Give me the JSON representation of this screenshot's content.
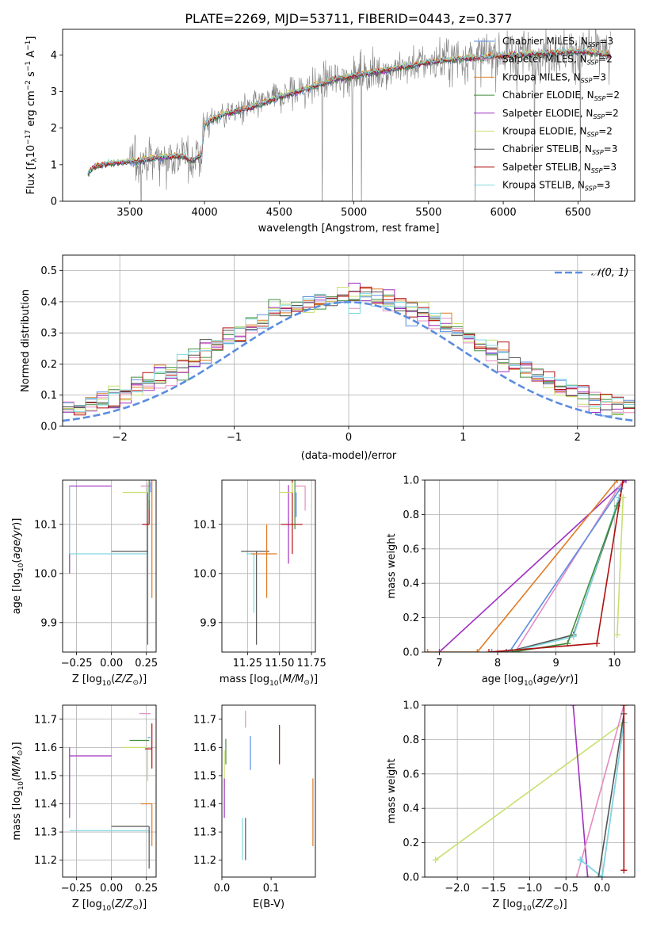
{
  "figure": {
    "title": "PLATE=2269, MJD=53711, FIBERID=0443, z=0.377"
  },
  "colors": {
    "Chabrier MILES": "#5b8de0",
    "Salpeter MILES": "#e58bc0",
    "Kroupa MILES": "#e07b23",
    "Chabrier ELODIE": "#3f8f3f",
    "Salpeter ELODIE": "#a030c0",
    "Kroupa ELODIE": "#c8e070",
    "Chabrier STELIB": "#555555",
    "Salpeter STELIB": "#b01010",
    "Kroupa STELIB": "#7fd8e0",
    "data": "#808080",
    "normal": "#5b8de0"
  },
  "chart_data": [
    {
      "id": "spectrum",
      "type": "line",
      "title": "PLATE=2269, MJD=53711, FIBERID=0443, z=0.377",
      "xlabel": "wavelength [Angstrom, rest frame]",
      "ylabel": "Flux [f_λ 10^-17 erg cm^-2 s^-1 A^-1]",
      "xlim": [
        3050,
        6880
      ],
      "ylim": [
        0,
        4.7
      ],
      "xticks": [
        3500,
        4000,
        4500,
        5000,
        5500,
        6000,
        6500
      ],
      "yticks": [
        0,
        1,
        2,
        3,
        4
      ],
      "grid": false,
      "legend_position": "top-right",
      "legend": [
        "Chabrier MILES, N_SSP=3",
        "Salpeter MILES, N_SSP=2",
        "Kroupa MILES, N_SSP=3",
        "Chabrier ELODIE, N_SSP=2",
        "Salpeter ELODIE, N_SSP=2",
        "Kroupa ELODIE, N_SSP=2",
        "Chabrier STELIB, N_SSP=3",
        "Salpeter STELIB, N_SSP=3",
        "Kroupa STELIB, N_SSP=3"
      ],
      "x_start": 3220,
      "x_end": 6720,
      "continuum": [
        [
          3220,
          0.75
        ],
        [
          3260,
          0.95
        ],
        [
          3400,
          1.05
        ],
        [
          3550,
          1.1
        ],
        [
          3700,
          1.2
        ],
        [
          3850,
          1.25
        ],
        [
          3920,
          1.1
        ],
        [
          3980,
          1.3
        ],
        [
          4000,
          2.1
        ],
        [
          4100,
          2.35
        ],
        [
          4300,
          2.55
        ],
        [
          4500,
          2.85
        ],
        [
          4700,
          3.1
        ],
        [
          4900,
          3.35
        ],
        [
          5100,
          3.5
        ],
        [
          5300,
          3.65
        ],
        [
          5500,
          3.8
        ],
        [
          5700,
          3.9
        ],
        [
          5900,
          3.95
        ],
        [
          6100,
          4.0
        ],
        [
          6300,
          4.05
        ],
        [
          6500,
          4.1
        ],
        [
          6720,
          4.0
        ]
      ]
    },
    {
      "id": "residuals",
      "type": "histogram",
      "xlabel": "(data-model)/error",
      "ylabel": "Normed distribution",
      "xlim": [
        -2.5,
        2.5
      ],
      "ylim": [
        0,
        0.55
      ],
      "xticks": [
        -2,
        -1,
        0,
        1,
        2
      ],
      "yticks": [
        0.0,
        0.1,
        0.2,
        0.3,
        0.4,
        0.5
      ],
      "grid": true,
      "legend_position": "top-right",
      "legend": [
        "𝒩(0, 1)"
      ],
      "bin_width": 0.1,
      "peaks": [
        0.52,
        0.45,
        0.42,
        0.49,
        0.47,
        0.44,
        0.43,
        0.46,
        0.44
      ]
    },
    {
      "id": "age_vs_Z",
      "type": "scatter",
      "xlabel": "Z [log10(Z/Z☉)]",
      "ylabel": "age  [log10(age/yr)]",
      "xlim": [
        -0.35,
        0.32
      ],
      "ylim": [
        9.84,
        10.19
      ],
      "xticks": [
        -0.25,
        0.0,
        0.25
      ],
      "ytick_labels": [
        "-0.25",
        "0.00",
        "0.25"
      ],
      "yticks": [
        9.9,
        10.0,
        10.1
      ],
      "grid": true,
      "points": [
        {
          "model": "Salpeter ELODIE",
          "x": -0.3,
          "xerr": [
            0.0,
            0.3
          ],
          "y": 10.178,
          "yerr": [
            0.178,
            0.0
          ]
        },
        {
          "model": "Kroupa STELIB",
          "x": -0.3,
          "xerr": [
            0.0,
            0.56
          ],
          "y": 10.04,
          "yerr": [
            0.0,
            0.14
          ]
        },
        {
          "model": "Chabrier STELIB",
          "x": 0.26,
          "xerr": [
            0.26,
            0.0
          ],
          "y": 10.045,
          "yerr": [
            0.19,
            0.13
          ]
        },
        {
          "model": "Kroupa ELODIE",
          "x": 0.26,
          "xerr": [
            0.18,
            0.0
          ],
          "y": 10.165,
          "yerr": [
            0.0,
            0.02
          ]
        },
        {
          "model": "Salpeter MILES",
          "x": 0.28,
          "xerr": [
            0.07,
            0.0
          ],
          "y": 10.178,
          "yerr": [
            0.0,
            0.01
          ]
        },
        {
          "model": "Salpeter STELIB",
          "x": 0.27,
          "xerr": [
            0.05,
            0.0
          ],
          "y": 10.1,
          "yerr": [
            0.0,
            0.05
          ]
        },
        {
          "model": "Kroupa MILES",
          "x": 0.29,
          "xerr": [
            0.0,
            0.0
          ],
          "y": 10.04,
          "yerr": [
            0.09,
            0.15
          ]
        },
        {
          "model": "Chabrier ELODIE",
          "x": 0.27,
          "xerr": [
            0.0,
            0.0
          ],
          "y": 10.13,
          "yerr": [
            0.0,
            0.06
          ]
        },
        {
          "model": "Chabrier MILES",
          "x": 0.28,
          "xerr": [
            0.0,
            0.0
          ],
          "y": 10.165,
          "yerr": [
            0.0,
            0.02
          ]
        }
      ]
    },
    {
      "id": "age_vs_mass",
      "type": "scatter",
      "xlabel": "mass [log10(M/M☉)]",
      "ylabel": "",
      "xlim": [
        11.05,
        11.78
      ],
      "ylim": [
        9.84,
        10.19
      ],
      "xticks": [
        11.25,
        11.5,
        11.75
      ],
      "yticks": [
        9.9,
        10.0,
        10.1
      ],
      "grid": true,
      "points": [
        {
          "model": "Chabrier STELIB",
          "x": 11.32,
          "xerr": [
            0.12,
            0.1
          ],
          "y": 10.045,
          "yerr": [
            0.19,
            0.0
          ]
        },
        {
          "model": "Kroupa STELIB",
          "x": 11.3,
          "xerr": [
            0.06,
            0.0
          ],
          "y": 10.04,
          "yerr": [
            0.12,
            0.0
          ]
        },
        {
          "model": "Kroupa MILES",
          "x": 11.4,
          "xerr": [
            0.12,
            0.08
          ],
          "y": 10.04,
          "yerr": [
            0.09,
            0.06
          ]
        },
        {
          "model": "Salpeter ELODIE",
          "x": 11.57,
          "xerr": [
            0.0,
            0.0
          ],
          "y": 10.08,
          "yerr": [
            0.06,
            0.1
          ]
        },
        {
          "model": "Salpeter STELIB",
          "x": 11.6,
          "xerr": [
            0.09,
            0.08
          ],
          "y": 10.1,
          "yerr": [
            0.06,
            0.09
          ]
        },
        {
          "model": "Kroupa ELODIE",
          "x": 11.6,
          "xerr": [
            0.1,
            0.0
          ],
          "y": 10.165,
          "yerr": [
            0.0,
            0.02
          ]
        },
        {
          "model": "Chabrier ELODIE",
          "x": 11.62,
          "xerr": [
            0.0,
            0.0
          ],
          "y": 10.13,
          "yerr": [
            0.04,
            0.06
          ]
        },
        {
          "model": "Salpeter MILES",
          "x": 11.7,
          "xerr": [
            0.08,
            0.0
          ],
          "y": 10.178,
          "yerr": [
            0.05,
            0.0
          ]
        },
        {
          "model": "Chabrier MILES",
          "x": 11.63,
          "xerr": [
            0.0,
            0.0
          ],
          "y": 10.165,
          "yerr": [
            0.05,
            0.0
          ]
        }
      ]
    },
    {
      "id": "mass_weight_vs_age",
      "type": "line",
      "xlabel": "age  [log10(age/yr)]",
      "ylabel": "mass weight",
      "xlim": [
        6.75,
        10.35
      ],
      "ylim": [
        0,
        1.0
      ],
      "xticks": [
        7,
        8,
        9,
        10
      ],
      "yticks": [
        0.0,
        0.2,
        0.4,
        0.6,
        0.8,
        1.0
      ],
      "grid": true,
      "series": [
        {
          "model": "Salpeter ELODIE",
          "x": [
            7.0,
            10.2
          ],
          "y": [
            0.0,
            1.0
          ]
        },
        {
          "model": "Kroupa MILES",
          "x": [
            6.8,
            7.65,
            10.05
          ],
          "y": [
            0.0,
            0.0,
            1.0
          ]
        },
        {
          "model": "Salpeter MILES",
          "x": [
            8.0,
            8.3,
            10.15
          ],
          "y": [
            0.0,
            0.0,
            1.0
          ]
        },
        {
          "model": "Chabrier MILES",
          "x": [
            7.9,
            8.2,
            10.1
          ],
          "y": [
            0.0,
            0.0,
            0.95
          ]
        },
        {
          "model": "Chabrier STELIB",
          "x": [
            8.15,
            9.3,
            10.1
          ],
          "y": [
            0.0,
            0.1,
            0.9
          ]
        },
        {
          "model": "Kroupa STELIB",
          "x": [
            8.2,
            9.3,
            10.08
          ],
          "y": [
            0.0,
            0.09,
            0.9
          ]
        },
        {
          "model": "Chabrier ELODIE",
          "x": [
            8.25,
            9.2,
            10.05
          ],
          "y": [
            0.0,
            0.05,
            0.85
          ]
        },
        {
          "model": "Salpeter STELIB",
          "x": [
            7.85,
            9.7,
            10.15
          ],
          "y": [
            0.0,
            0.05,
            1.0
          ]
        },
        {
          "model": "Kroupa ELODIE",
          "x": [
            10.05,
            10.15
          ],
          "y": [
            0.1,
            0.9
          ]
        }
      ]
    },
    {
      "id": "mass_vs_Z",
      "type": "scatter",
      "xlabel": "Z [log10(Z/Z☉)]",
      "ylabel": "mass [log10(M/M☉)]",
      "xlim": [
        -0.35,
        0.32
      ],
      "ylim": [
        11.14,
        11.75
      ],
      "xticks": [
        -0.25,
        0.0,
        0.25
      ],
      "yticks": [
        11.2,
        11.3,
        11.4,
        11.5,
        11.6,
        11.7
      ],
      "grid": true,
      "points": [
        {
          "model": "Salpeter ELODIE",
          "x": -0.3,
          "xerr": [
            0.0,
            0.3
          ],
          "y": 11.57,
          "yerr": [
            0.22,
            0.03
          ]
        },
        {
          "model": "Kroupa STELIB",
          "x": -0.3,
          "xerr": [
            0.0,
            0.57
          ],
          "y": 11.305,
          "yerr": [
            0.0,
            0.0
          ]
        },
        {
          "model": "Chabrier STELIB",
          "x": 0.27,
          "xerr": [
            0.27,
            0.0
          ],
          "y": 11.32,
          "yerr": [
            0.15,
            0.0
          ]
        },
        {
          "model": "Kroupa MILES",
          "x": 0.29,
          "xerr": [
            0.08,
            0.0
          ],
          "y": 11.4,
          "yerr": [
            0.15,
            0.0
          ]
        },
        {
          "model": "Kroupa ELODIE",
          "x": 0.26,
          "xerr": [
            0.18,
            0.0
          ],
          "y": 11.6,
          "yerr": [
            0.12,
            0.0
          ]
        },
        {
          "model": "Chabrier ELODIE",
          "x": 0.27,
          "xerr": [
            0.14,
            0.0
          ],
          "y": 11.625,
          "yerr": [
            0.0,
            0.0
          ]
        },
        {
          "model": "Salpeter STELIB",
          "x": 0.29,
          "xerr": [
            0.05,
            0.0
          ],
          "y": 11.595,
          "yerr": [
            0.07,
            0.09
          ]
        },
        {
          "model": "Chabrier MILES",
          "x": 0.28,
          "xerr": [
            0.02,
            0.0
          ],
          "y": 11.635,
          "yerr": [
            0.0,
            0.0
          ]
        },
        {
          "model": "Salpeter MILES",
          "x": 0.28,
          "xerr": [
            0.08,
            0.0
          ],
          "y": 11.72,
          "yerr": [
            0.0,
            0.0
          ]
        }
      ]
    },
    {
      "id": "mass_vs_ebv",
      "type": "scatter",
      "xlabel": "E(B-V)",
      "ylabel": "",
      "xlim": [
        0.0,
        0.19
      ],
      "ylim": [
        11.14,
        11.75
      ],
      "xticks": [
        0.0,
        0.1
      ],
      "yticks": [
        11.2,
        11.3,
        11.4,
        11.5,
        11.6,
        11.7
      ],
      "grid": false,
      "points": [
        {
          "model": "Kroupa ELODIE",
          "x": 0.005,
          "xerr": [
            0.0,
            0.0
          ],
          "y": 11.59,
          "yerr": [
            0.14,
            0.0
          ]
        },
        {
          "model": "Chabrier ELODIE",
          "x": 0.008,
          "xerr": [
            0.0,
            0.0
          ],
          "y": 11.54,
          "yerr": [
            0.0,
            0.09
          ]
        },
        {
          "model": "Salpeter ELODIE",
          "x": 0.005,
          "xerr": [
            0.0,
            0.0
          ],
          "y": 11.42,
          "yerr": [
            0.07,
            0.07
          ]
        },
        {
          "model": "Kroupa STELIB",
          "x": 0.042,
          "xerr": [
            0.0,
            0.0
          ],
          "y": 11.28,
          "yerr": [
            0.08,
            0.07
          ]
        },
        {
          "model": "Chabrier STELIB",
          "x": 0.048,
          "xerr": [
            0.0,
            0.0
          ],
          "y": 11.25,
          "yerr": [
            0.05,
            0.1
          ]
        },
        {
          "model": "Salpeter MILES",
          "x": 0.048,
          "xerr": [
            0.0,
            0.0
          ],
          "y": 11.67,
          "yerr": [
            0.0,
            0.06
          ]
        },
        {
          "model": "Chabrier MILES",
          "x": 0.058,
          "xerr": [
            0.0,
            0.0
          ],
          "y": 11.58,
          "yerr": [
            0.06,
            0.06
          ]
        },
        {
          "model": "Salpeter STELIB",
          "x": 0.117,
          "xerr": [
            0.0,
            0.0
          ],
          "y": 11.61,
          "yerr": [
            0.07,
            0.07
          ]
        },
        {
          "model": "Kroupa MILES",
          "x": 0.185,
          "xerr": [
            0.0,
            0.0
          ],
          "y": 11.37,
          "yerr": [
            0.12,
            0.12
          ]
        }
      ]
    },
    {
      "id": "mass_weight_vs_Z",
      "type": "line",
      "xlabel": "Z [log10(Z/Z☉)]",
      "ylabel": "mass weight",
      "xlim": [
        -2.45,
        0.45
      ],
      "ylim": [
        0,
        1.0
      ],
      "xticks": [
        -2.0,
        -1.5,
        -1.0,
        -0.5,
        0.0
      ],
      "yticks": [
        0.0,
        0.2,
        0.4,
        0.6,
        0.8,
        1.0
      ],
      "grid": true,
      "series": [
        {
          "model": "Kroupa ELODIE",
          "x": [
            -2.3,
            0.3
          ],
          "y": [
            0.1,
            0.9
          ]
        },
        {
          "model": "Salpeter ELODIE",
          "x": [
            -0.4,
            -0.2
          ],
          "y": [
            1.0,
            0.0
          ]
        },
        {
          "model": "Salpeter MILES",
          "x": [
            -0.35,
            0.3
          ],
          "y": [
            0.0,
            1.0
          ]
        },
        {
          "model": "Chabrier MILES",
          "x": [
            -0.3,
            0.0,
            0.3
          ],
          "y": [
            0.1,
            0.0,
            0.9
          ]
        },
        {
          "model": "Kroupa STELIB",
          "x": [
            -0.3,
            0.0,
            0.3
          ],
          "y": [
            0.1,
            0.0,
            0.9
          ]
        },
        {
          "model": "Chabrier STELIB",
          "x": [
            -0.05,
            0.3
          ],
          "y": [
            0.0,
            0.95
          ]
        },
        {
          "model": "Salpeter STELIB",
          "x": [
            0.3,
            0.3
          ],
          "y": [
            0.04,
            1.0
          ]
        }
      ]
    }
  ]
}
